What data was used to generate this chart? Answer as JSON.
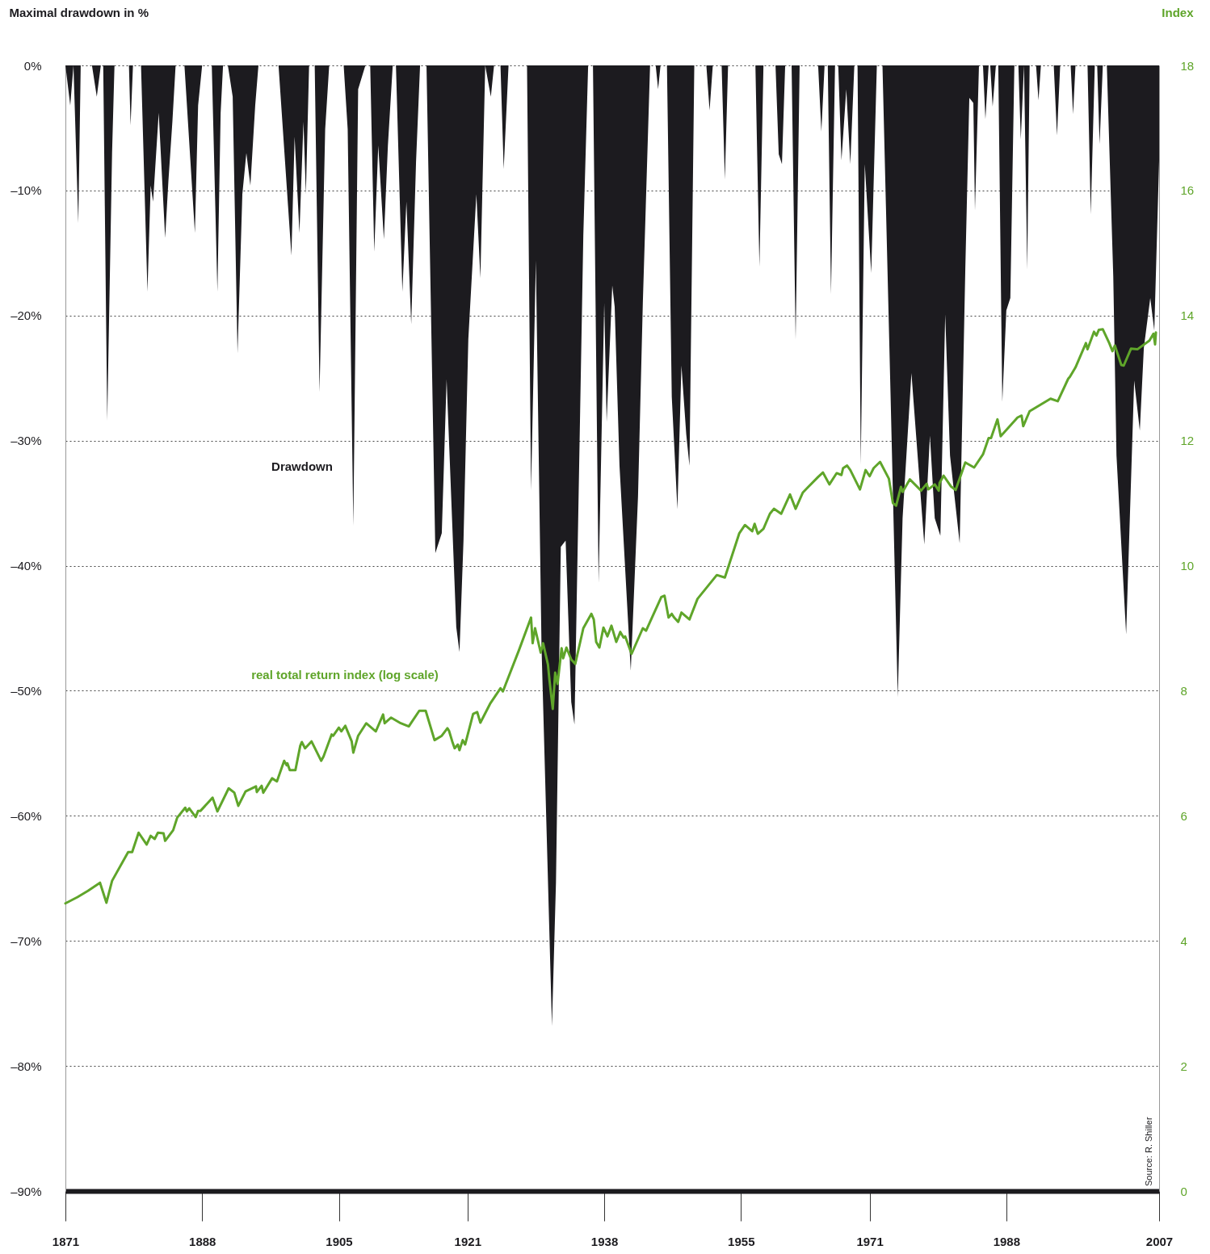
{
  "chart_data": {
    "type": "area",
    "ylabel": "Maximal drawdown in %",
    "y2label": "Index",
    "xlim": [
      1871,
      2007
    ],
    "xticks": [
      1871,
      1888,
      1905,
      1921,
      1938,
      1955,
      1971,
      1988,
      2007
    ],
    "ylim": [
      -90,
      0
    ],
    "yticks": [
      {
        "value": 0,
        "label": "0%"
      },
      {
        "value": -10,
        "label": "–10%"
      },
      {
        "value": -20,
        "label": "–20%"
      },
      {
        "value": -30,
        "label": "–30%"
      },
      {
        "value": -40,
        "label": "–40%"
      },
      {
        "value": -50,
        "label": "–50%"
      },
      {
        "value": -60,
        "label": "–60%"
      },
      {
        "value": -70,
        "label": "–70%"
      },
      {
        "value": -80,
        "label": "–80%"
      },
      {
        "value": -90,
        "label": "–90%"
      }
    ],
    "y2lim": [
      0,
      18
    ],
    "y2ticks": [
      0,
      2,
      4,
      6,
      8,
      10,
      12,
      14,
      16,
      18
    ],
    "grid": "y",
    "annotations": [
      "Source: R. Shiller"
    ],
    "series": [
      {
        "name": "Drawdown",
        "color": "#1c1b1f",
        "x": [
          1871.0,
          1871.6,
          1872.0,
          1872.6,
          1872.9,
          1874.3,
          1874.9,
          1875.4,
          1875.7,
          1876.2,
          1876.8,
          1877.1,
          1878.9,
          1879.1,
          1879.4,
          1880.4,
          1881.2,
          1881.6,
          1881.9,
          1882.6,
          1883.4,
          1883.8,
          1884.3,
          1884.7,
          1885.8,
          1887.1,
          1887.5,
          1888.0,
          1889.2,
          1889.9,
          1890.3,
          1890.6,
          1891.2,
          1891.8,
          1892.4,
          1893.0,
          1893.5,
          1894.0,
          1894.6,
          1895.0,
          1897.5,
          1899.1,
          1899.5,
          1900.1,
          1900.6,
          1900.9,
          1901.3,
          1902.0,
          1902.6,
          1903.3,
          1903.8,
          1905.6,
          1906.1,
          1906.8,
          1907.4,
          1908.3,
          1908.9,
          1909.4,
          1909.9,
          1910.6,
          1911.1,
          1911.7,
          1912.1,
          1912.9,
          1913.4,
          1914.0,
          1914.6,
          1915.1,
          1915.9,
          1917.0,
          1917.8,
          1918.4,
          1919.6,
          1920.0,
          1920.5,
          1921.1,
          1922.1,
          1922.6,
          1923.2,
          1923.9,
          1924.3,
          1925.1,
          1925.5,
          1926.1,
          1928.4,
          1928.9,
          1929.5,
          1930.2,
          1931.5,
          1932.0,
          1932.6,
          1933.2,
          1933.9,
          1934.3,
          1935.4,
          1936.0,
          1936.6,
          1937.3,
          1938.0,
          1938.3,
          1939.0,
          1939.3,
          1939.9,
          1941.3,
          1942.2,
          1942.8,
          1943.7,
          1944.4,
          1944.7,
          1945.0,
          1945.8,
          1946.4,
          1947.1,
          1947.6,
          1948.2,
          1948.6,
          1949.2,
          1950.7,
          1951.1,
          1951.5,
          1952.6,
          1953.0,
          1953.4,
          1956.8,
          1957.3,
          1957.8,
          1959.3,
          1959.7,
          1960.1,
          1960.5,
          1961.3,
          1961.8,
          1962.3,
          1964.6,
          1965.0,
          1965.4,
          1965.8,
          1966.2,
          1966.7,
          1967.1,
          1967.5,
          1968.1,
          1968.6,
          1969.1,
          1969.5,
          1969.9,
          1970.4,
          1971.2,
          1971.9,
          1972.6,
          1973.6,
          1974.5,
          1975.1,
          1976.2,
          1977.8,
          1978.5,
          1979.1,
          1979.8,
          1980.4,
          1981.0,
          1982.2,
          1982.9,
          1983.4,
          1983.9,
          1984.1,
          1984.6,
          1985.1,
          1985.4,
          1985.8,
          1986.0,
          1986.3,
          1986.7,
          1987.0,
          1987.5,
          1988.0,
          1988.5,
          1989.0,
          1989.5,
          1989.8,
          1990.2,
          1990.6,
          1990.9,
          1991.7,
          1992.0,
          1992.3,
          1993.9,
          1994.3,
          1994.7,
          1996.0,
          1996.3,
          1996.6,
          1998.1,
          1998.5,
          1999.0,
          1999.3,
          1999.6,
          2000.0,
          2000.5,
          2001.3,
          2001.7,
          2002.9,
          2003.9,
          2004.6,
          2005.1,
          2005.9,
          2006.4,
          2007.0
        ],
        "values": [
          0,
          -3.2,
          0,
          -12.6,
          0,
          0,
          -2.5,
          0,
          0,
          -28.4,
          -7.0,
          0,
          0,
          -4.8,
          0,
          0,
          -18.1,
          -9.6,
          -10.9,
          -3.8,
          -13.8,
          -9.3,
          -4.5,
          0,
          0,
          -13.4,
          -3.2,
          0,
          0,
          -18.1,
          -3.8,
          0,
          0,
          -2.5,
          -23.0,
          -10.3,
          -7.0,
          -9.6,
          -3.2,
          0,
          0,
          -15.2,
          -5.7,
          -13.4,
          -4.5,
          -10.3,
          0,
          0,
          -26.1,
          -5.1,
          0,
          0,
          -5.1,
          -36.8,
          -1.9,
          0,
          0,
          -14.9,
          -6.4,
          -13.9,
          -6.4,
          0,
          0,
          -18.1,
          -10.9,
          -20.7,
          -7.7,
          0,
          0,
          -39.0,
          -37.4,
          -25.1,
          -44.9,
          -46.9,
          -38.0,
          -21.9,
          -10.3,
          -17.0,
          0,
          -2.5,
          0,
          0,
          -8.3,
          0,
          0,
          -34.0,
          -15.6,
          -46.4,
          -76.8,
          -65.3,
          -38.5,
          -38.0,
          -50.9,
          -52.7,
          -13.6,
          0,
          0,
          -41.4,
          -19.0,
          -28.5,
          -17.6,
          -19.3,
          -32.0,
          -48.4,
          -34.5,
          -19.0,
          0,
          0,
          -1.9,
          0,
          0,
          -26.5,
          -35.5,
          -24.0,
          -29.5,
          -32.0,
          0,
          0,
          -3.6,
          0,
          0,
          -9.1,
          0,
          0,
          -16.1,
          0,
          0,
          -7.1,
          -7.9,
          0,
          0,
          -21.9,
          0,
          0,
          -5.3,
          0,
          0,
          -18.3,
          0,
          0,
          -7.6,
          -1.9,
          -7.9,
          0,
          0,
          -31.9,
          -7.9,
          -16.6,
          0,
          0,
          -26.2,
          -50.5,
          -36.2,
          -24.6,
          -38.3,
          -29.6,
          -36.2,
          -37.6,
          -19.9,
          -31.2,
          -38.2,
          -16.3,
          -2.6,
          -3.0,
          -11.6,
          0,
          0,
          -4.3,
          0,
          0,
          -3.3,
          0,
          0,
          -26.9,
          -19.6,
          -18.6,
          0,
          0,
          -5.9,
          0,
          -16.3,
          0,
          0,
          -2.8,
          0,
          0,
          -5.6,
          0,
          0,
          -3.9,
          0,
          0,
          -11.9,
          0,
          0,
          -6.3,
          0,
          0,
          -16.9,
          -31.2,
          -45.5,
          -25.2,
          -29.2,
          -22.6,
          -18.6,
          -21.2,
          -7.6
        ]
      },
      {
        "name": "real total return index (log scale)",
        "type": "line",
        "axis": "y2",
        "color": "#5fa52a",
        "x": [
          1871.0,
          1872.5,
          1873.8,
          1875.3,
          1876.1,
          1876.8,
          1878.8,
          1879.3,
          1880.1,
          1881.1,
          1881.6,
          1882.1,
          1882.5,
          1883.2,
          1883.4,
          1884.4,
          1884.9,
          1885.9,
          1886.1,
          1886.4,
          1887.2,
          1887.5,
          1887.8,
          1889.3,
          1889.9,
          1891.3,
          1892.0,
          1892.5,
          1893.4,
          1894.7,
          1894.8,
          1895.4,
          1895.6,
          1896.7,
          1897.3,
          1898.2,
          1898.5,
          1898.6,
          1898.9,
          1899.6,
          1900.2,
          1900.4,
          1900.8,
          1901.6,
          1902.8,
          1903.1,
          1904.1,
          1904.3,
          1905.0,
          1905.3,
          1905.8,
          1906.6,
          1906.8,
          1907.4,
          1908.4,
          1909.6,
          1910.5,
          1910.7,
          1911.5,
          1912.7,
          1913.7,
          1915.0,
          1915.8,
          1916.9,
          1917.8,
          1918.5,
          1918.7,
          1919.1,
          1919.4,
          1919.8,
          1920.0,
          1920.4,
          1920.7,
          1921.7,
          1922.2,
          1922.6,
          1923.8,
          1925.1,
          1925.4,
          1927.4,
          1928.9,
          1929.1,
          1929.4,
          1930.1,
          1930.4,
          1931.0,
          1931.2,
          1931.6,
          1931.9,
          1932.2,
          1932.7,
          1932.9,
          1933.3,
          1933.9,
          1934.4,
          1935.4,
          1936.4,
          1936.7,
          1937.0,
          1937.4,
          1937.9,
          1938.4,
          1938.9,
          1939.5,
          1940.0,
          1940.4,
          1940.6,
          1941.4,
          1942.8,
          1943.2,
          1945.1,
          1945.5,
          1946.0,
          1946.4,
          1946.7,
          1947.2,
          1947.6,
          1948.6,
          1949.6,
          1952.0,
          1953.0,
          1954.8,
          1955.5,
          1956.4,
          1956.7,
          1957.1,
          1957.8,
          1958.6,
          1959.1,
          1960.0,
          1961.1,
          1961.8,
          1962.7,
          1963.3,
          1964.6,
          1965.2,
          1966.0,
          1966.9,
          1967.5,
          1967.7,
          1968.2,
          1968.6,
          1969.8,
          1970.5,
          1971.0,
          1971.5,
          1972.3,
          1973.4,
          1973.9,
          1974.3,
          1974.9,
          1975.1,
          1976.0,
          1977.4,
          1978.1,
          1978.3,
          1979.1,
          1979.6,
          1979.7,
          1980.2,
          1981.1,
          1981.7,
          1982.9,
          1984.0,
          1985.1,
          1985.8,
          1986.1,
          1986.9,
          1987.3,
          1989.4,
          1989.9,
          1990.1,
          1990.9,
          1993.5,
          1994.4,
          1995.7,
          1995.9,
          1996.6,
          1997.9,
          1998.1,
          1998.9,
          1999.2,
          1999.5,
          2000.0,
          2000.8,
          2001.2,
          2001.5,
          2002.3,
          2002.6,
          2003.5,
          2004.3,
          2005.8,
          2006.3,
          2006.5,
          2006.6
        ],
        "values": [
          4.6,
          4.7,
          4.8,
          4.93,
          4.61,
          4.96,
          5.42,
          5.42,
          5.73,
          5.54,
          5.68,
          5.63,
          5.73,
          5.72,
          5.6,
          5.77,
          5.97,
          6.13,
          6.07,
          6.12,
          5.98,
          6.08,
          6.08,
          6.29,
          6.07,
          6.44,
          6.37,
          6.16,
          6.39,
          6.47,
          6.38,
          6.48,
          6.37,
          6.6,
          6.55,
          6.88,
          6.81,
          6.84,
          6.73,
          6.73,
          7.12,
          7.18,
          7.08,
          7.19,
          6.88,
          6.95,
          7.3,
          7.28,
          7.41,
          7.35,
          7.44,
          7.19,
          7.01,
          7.28,
          7.48,
          7.35,
          7.62,
          7.48,
          7.57,
          7.48,
          7.43,
          7.68,
          7.68,
          7.21,
          7.28,
          7.4,
          7.36,
          7.19,
          7.08,
          7.14,
          7.05,
          7.21,
          7.14,
          7.63,
          7.66,
          7.49,
          7.79,
          8.04,
          7.99,
          8.65,
          9.17,
          8.76,
          9.0,
          8.61,
          8.76,
          8.42,
          8.16,
          7.71,
          8.29,
          8.11,
          8.68,
          8.52,
          8.69,
          8.5,
          8.43,
          9.0,
          9.23,
          9.14,
          8.78,
          8.69,
          9.01,
          8.87,
          9.04,
          8.78,
          8.94,
          8.85,
          8.87,
          8.59,
          9.0,
          8.96,
          9.5,
          9.52,
          9.17,
          9.23,
          9.17,
          9.1,
          9.25,
          9.14,
          9.47,
          9.85,
          9.81,
          10.52,
          10.65,
          10.55,
          10.67,
          10.51,
          10.59,
          10.83,
          10.91,
          10.83,
          11.14,
          10.91,
          11.17,
          11.25,
          11.42,
          11.49,
          11.3,
          11.48,
          11.45,
          11.56,
          11.6,
          11.53,
          11.22,
          11.53,
          11.43,
          11.56,
          11.66,
          11.39,
          11.0,
          10.96,
          11.26,
          11.18,
          11.38,
          11.2,
          11.31,
          11.22,
          11.3,
          11.2,
          11.32,
          11.44,
          11.27,
          11.21,
          11.65,
          11.57,
          11.78,
          12.04,
          12.04,
          12.34,
          12.07,
          12.37,
          12.4,
          12.23,
          12.47,
          12.67,
          12.63,
          12.99,
          13.02,
          13.17,
          13.56,
          13.46,
          13.74,
          13.68,
          13.77,
          13.78,
          13.56,
          13.43,
          13.52,
          13.21,
          13.2,
          13.47,
          13.46,
          13.6,
          13.71,
          13.54,
          13.73
        ]
      }
    ]
  }
}
